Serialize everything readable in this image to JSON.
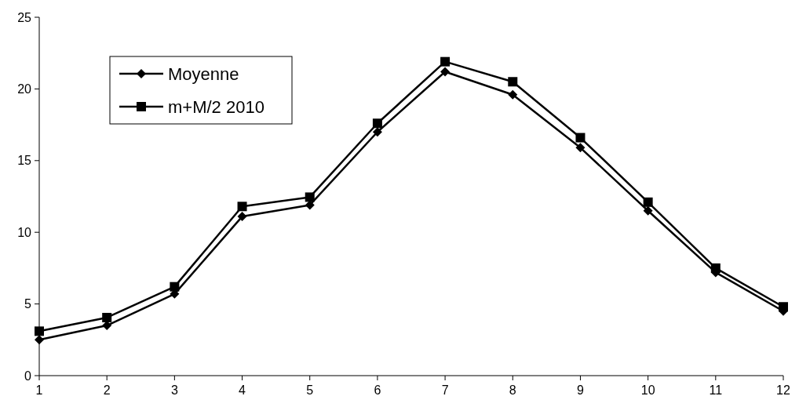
{
  "chart_data": {
    "type": "line",
    "x": [
      1,
      2,
      3,
      4,
      5,
      6,
      7,
      8,
      9,
      10,
      11,
      12
    ],
    "xlim": [
      1,
      12
    ],
    "xticks": [
      1,
      2,
      3,
      4,
      5,
      6,
      7,
      8,
      9,
      10,
      11,
      12
    ],
    "ylim": [
      0,
      25
    ],
    "yticks": [
      0,
      5,
      10,
      15,
      20,
      25
    ],
    "grid": false,
    "legend": "top left",
    "line_style": "solid",
    "series": [
      {
        "name": "Moyenne",
        "color": "#000000",
        "marker": "diamond",
        "values": [
          2.5,
          3.5,
          5.7,
          11.1,
          11.9,
          17.0,
          21.2,
          19.6,
          15.9,
          11.5,
          7.2,
          4.5
        ]
      },
      {
        "name": "m+M/2 2010",
        "color": "#000000",
        "marker": "square",
        "values": [
          3.1,
          4.05,
          6.2,
          11.8,
          12.45,
          17.6,
          21.9,
          20.5,
          16.6,
          12.1,
          7.5,
          4.8
        ]
      }
    ]
  }
}
